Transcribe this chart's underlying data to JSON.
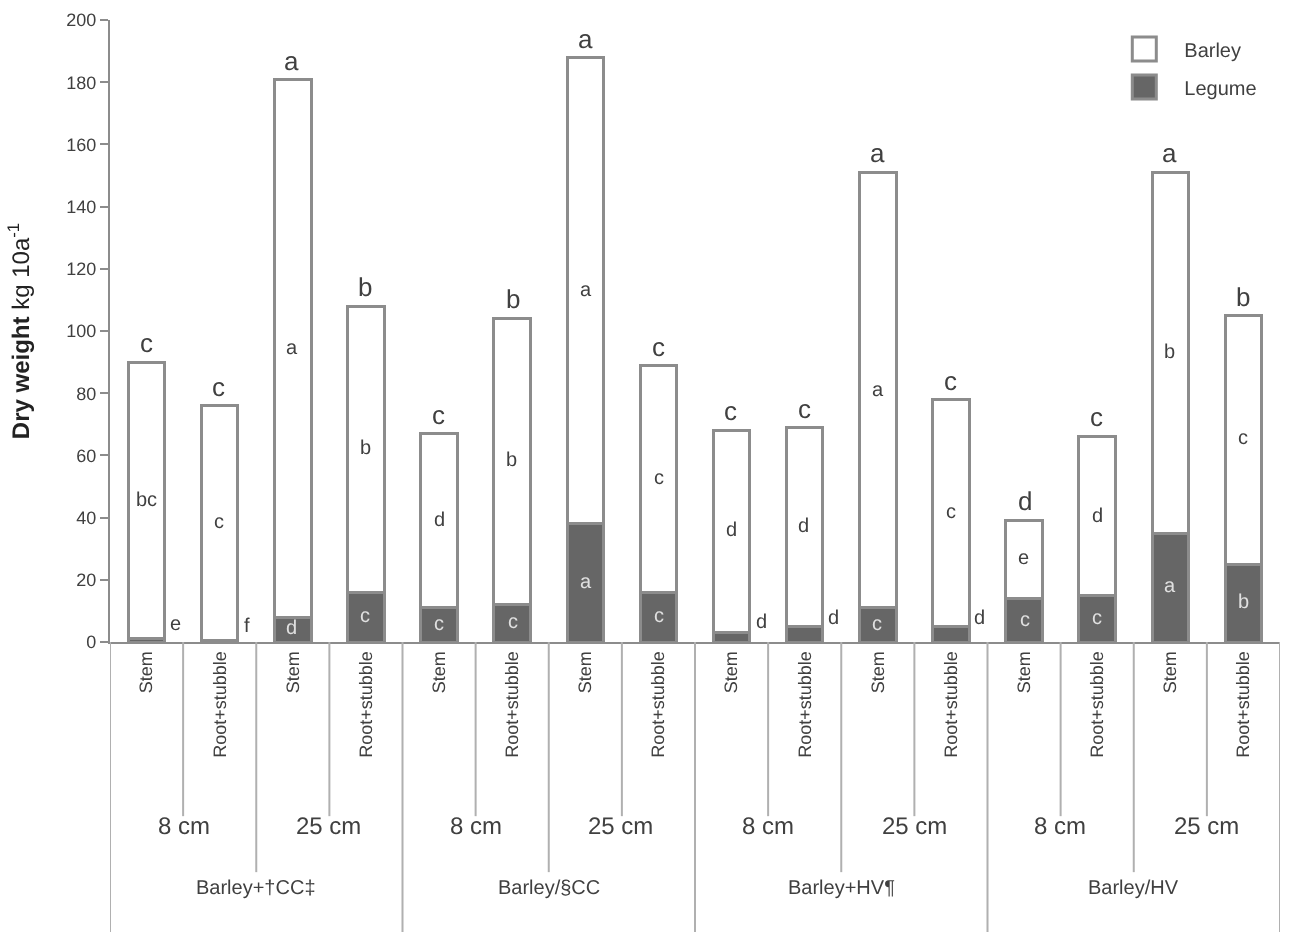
{
  "chart_data": {
    "type": "bar",
    "stacked": true,
    "ylabel": "Dry weight kg 10a$^{-1}$",
    "categories": [
      "Stem",
      "Root+stubble",
      "Stem",
      "Root+stubble",
      "Stem",
      "Root+stubble",
      "Stem",
      "Root+stubble",
      "Stem",
      "Root+stubble",
      "Stem",
      "Root+stubble",
      "Stem",
      "Root+stubble",
      "Stem",
      "Root+stubble"
    ],
    "series": [
      {
        "name": "Legume",
        "color": "#666666",
        "values": [
          1,
          0.5,
          8,
          16,
          11,
          12,
          38,
          16,
          3,
          5,
          11,
          5,
          14,
          15,
          35,
          25
        ],
        "value_labels": [
          "e",
          "f",
          "d",
          "c",
          "c",
          "c",
          "a",
          "c",
          "d",
          "d",
          "c",
          "d",
          "c",
          "c",
          "a",
          "b"
        ]
      },
      {
        "name": "Barley",
        "color": "#ffffff",
        "values": [
          89,
          75.5,
          173,
          92,
          56,
          92,
          150,
          73,
          65,
          64,
          140,
          73,
          25,
          51,
          116,
          80
        ],
        "value_labels": [
          "bc",
          "c",
          "a",
          "b",
          "d",
          "b",
          "a",
          "c",
          "d",
          "d",
          "a",
          "c",
          "e",
          "d",
          "b",
          "c"
        ]
      }
    ],
    "totals": [
      "c",
      "c",
      "a",
      "b",
      "c",
      "b",
      "a",
      "c",
      "c",
      "c",
      "a",
      "c",
      "d",
      "c",
      "a",
      "b"
    ],
    "annotations": [
      "8 cm",
      "25 cm",
      "8 cm",
      "25 cm",
      "8 cm",
      "25 cm",
      "8 cm",
      "25 cm",
      "Barley+†CC‡",
      "Barley/§CC",
      "Barley+HV¶",
      "Barley/HV"
    ],
    "ylim": [
      0,
      200
    ],
    "yticks": [
      0,
      20,
      40,
      60,
      80,
      100,
      120,
      140,
      160,
      180,
      200
    ],
    "legend": "top right"
  }
}
